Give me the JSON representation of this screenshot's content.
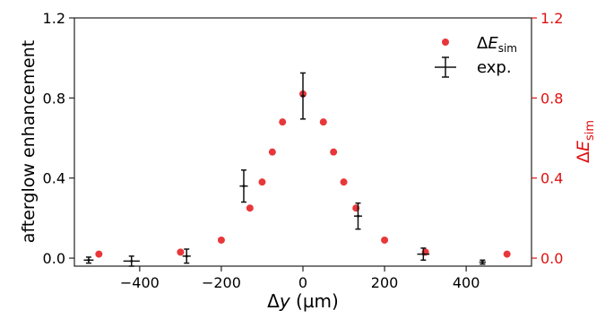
{
  "chart_data": {
    "type": "scatter",
    "x_label": {
      "text": "Δ",
      "var": "y",
      "unit": " (µm)"
    },
    "y_label_left": "afterglow enhancement",
    "y_label_right": {
      "main": "Δ",
      "var": "E",
      "sub": "sim"
    },
    "xlim": [
      -560,
      560
    ],
    "ylim": [
      -0.04,
      1.2
    ],
    "x_ticks": [
      -400,
      -200,
      0,
      200,
      400
    ],
    "x_tick_labels": [
      "−400",
      "−200",
      "0",
      "200",
      "400"
    ],
    "y_ticks": [
      0.0,
      0.4,
      0.8,
      1.2
    ],
    "y_tick_labels": [
      "0.0",
      "0.4",
      "0.8",
      "1.2"
    ],
    "right_y_ticks": [
      0.0,
      0.4,
      0.8,
      1.2
    ],
    "right_y_tick_labels": [
      "0.0",
      "0.4",
      "0.8",
      "1.2"
    ],
    "grid": false,
    "legend_placement": "top-right",
    "colors": {
      "sim": "#e8373a",
      "exp": "#111111",
      "right_axis": "#e01010"
    },
    "series": [
      {
        "name": {
          "main": "Δ",
          "var": "E",
          "sub": "sim"
        },
        "kind": "points",
        "x": [
          -500,
          -300,
          -200,
          -130,
          -100,
          -75,
          -50,
          0,
          50,
          75,
          100,
          130,
          200,
          300,
          500
        ],
        "y": [
          0.02,
          0.03,
          0.09,
          0.25,
          0.38,
          0.53,
          0.68,
          0.82,
          0.68,
          0.53,
          0.38,
          0.25,
          0.09,
          0.03,
          0.02
        ]
      },
      {
        "name": "exp.",
        "kind": "errorbar",
        "points": [
          {
            "x": -525,
            "y": -0.01,
            "xerr": 12,
            "yerr": 0.015
          },
          {
            "x": -420,
            "y": -0.015,
            "xerr": 20,
            "yerr": 0.025
          },
          {
            "x": -285,
            "y": 0.01,
            "xerr": 10,
            "yerr": 0.035
          },
          {
            "x": -145,
            "y": 0.36,
            "xerr": 10,
            "yerr": 0.08
          },
          {
            "x": 0,
            "y": 0.81,
            "xerr": 5,
            "yerr": 0.115
          },
          {
            "x": 135,
            "y": 0.21,
            "xerr": 10,
            "yerr": 0.065
          },
          {
            "x": 295,
            "y": 0.02,
            "xerr": 15,
            "yerr": 0.03
          },
          {
            "x": 440,
            "y": -0.02,
            "xerr": 8,
            "yerr": 0.01
          }
        ]
      }
    ]
  }
}
